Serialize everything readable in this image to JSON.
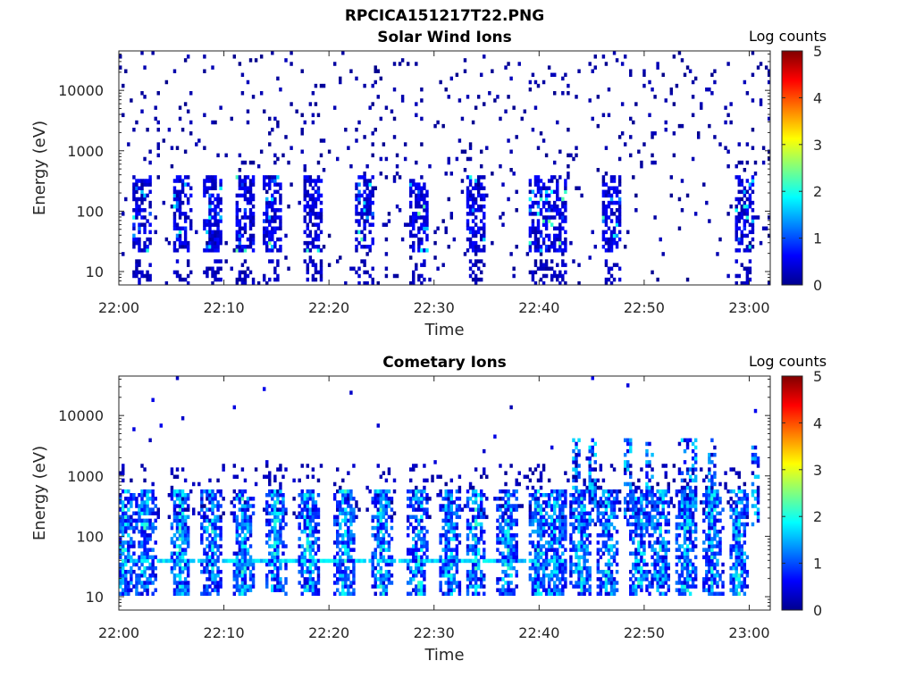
{
  "figure": {
    "title": "RPCICA151217T22.PNG"
  },
  "chart_data": [
    {
      "type": "heatmap",
      "title": "Solar Wind Ions",
      "xlabel": "Time",
      "ylabel": "Energy (eV)",
      "x_ticks": [
        "22:00",
        "22:10",
        "22:20",
        "22:30",
        "22:40",
        "22:50",
        "23:00"
      ],
      "y_ticks": [
        "10",
        "100",
        "1000",
        "10000"
      ],
      "y_scale": "log",
      "x_range_min": [
        0,
        62
      ],
      "ylim": [
        6,
        45000
      ],
      "colorbar": {
        "label": "Log counts",
        "ticks": [
          "0",
          "1",
          "2",
          "3",
          "4",
          "5"
        ],
        "range": [
          0,
          5
        ],
        "colormap": "jet"
      },
      "bursts_min": [
        2.2,
        6.0,
        9.0,
        12.0,
        14.5,
        18.5,
        23.5,
        28.5,
        34.0,
        40.0,
        41.8,
        47.0,
        59.5
      ],
      "typical_level_log_counts": 0.2,
      "peak_level_log_counts": 1.8,
      "energy_band_eV": [
        20,
        400
      ]
    },
    {
      "type": "heatmap",
      "title": "Cometary Ions",
      "xlabel": "Time",
      "ylabel": "Energy (eV)",
      "x_ticks": [
        "22:00",
        "22:10",
        "22:20",
        "22:30",
        "22:40",
        "22:50",
        "23:00"
      ],
      "y_ticks": [
        "10",
        "100",
        "1000",
        "10000"
      ],
      "y_scale": "log",
      "x_range_min": [
        0,
        62
      ],
      "ylim": [
        6,
        45000
      ],
      "colorbar": {
        "label": "Log counts",
        "ticks": [
          "0",
          "1",
          "2",
          "3",
          "4",
          "5"
        ],
        "range": [
          0,
          5
        ],
        "colormap": "jet"
      },
      "bursts_min": [
        0.5,
        2.5,
        5.8,
        8.8,
        11.8,
        15.0,
        18.0,
        21.5,
        25.0,
        28.5,
        31.5,
        34.0,
        37.0,
        40.0,
        41.5,
        44.0,
        46.5,
        49.5,
        51.5,
        54.0,
        56.5,
        59.0
      ],
      "late_high_energy_min": [
        43.5,
        45.0,
        48.5,
        50.5,
        53.5,
        54.5,
        56.5,
        60.5
      ],
      "peak_level_log_counts": 2.3,
      "band_energy_eV": 40,
      "energy_band_eV": [
        10,
        600
      ]
    }
  ]
}
